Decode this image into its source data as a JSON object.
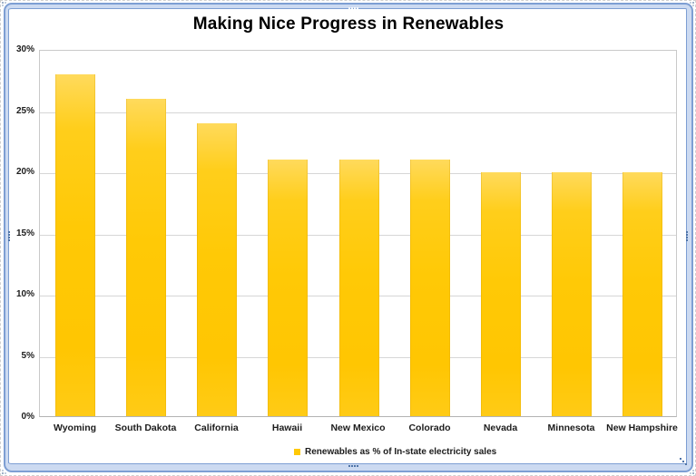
{
  "frame": {
    "line_color": "#7d9ed3",
    "fill_color": "#ccdaf1",
    "grip_color": "#4f74a8"
  },
  "chart_data": {
    "type": "bar",
    "title": "Making Nice Progress in Renewables",
    "categories": [
      "Wyoming",
      "South Dakota",
      "California",
      "Hawaii",
      "New Mexico",
      "Colorado",
      "Nevada",
      "Minnesota",
      "New Hampshire"
    ],
    "values": [
      28,
      26,
      24,
      21,
      21,
      21,
      20,
      20,
      20
    ],
    "unit": "%",
    "xlabel": "",
    "ylabel": "",
    "ylim": [
      0,
      30
    ],
    "ytick_step": 5,
    "ytick_labels": [
      "0%",
      "5%",
      "10%",
      "15%",
      "20%",
      "25%",
      "30%"
    ],
    "grid": true,
    "legend": {
      "label": "Renewables as % of In-state electricity sales",
      "position": "bottom"
    },
    "colors": {
      "bar_main": "#ffc906",
      "bar_highlight": "#ffda5c",
      "grid_line": "#d6d6d6",
      "plot_border": "#c9c9c9",
      "axis_line": "#b3b3b3",
      "title_text": "#000000",
      "label_text": "#1c1c1c"
    }
  }
}
